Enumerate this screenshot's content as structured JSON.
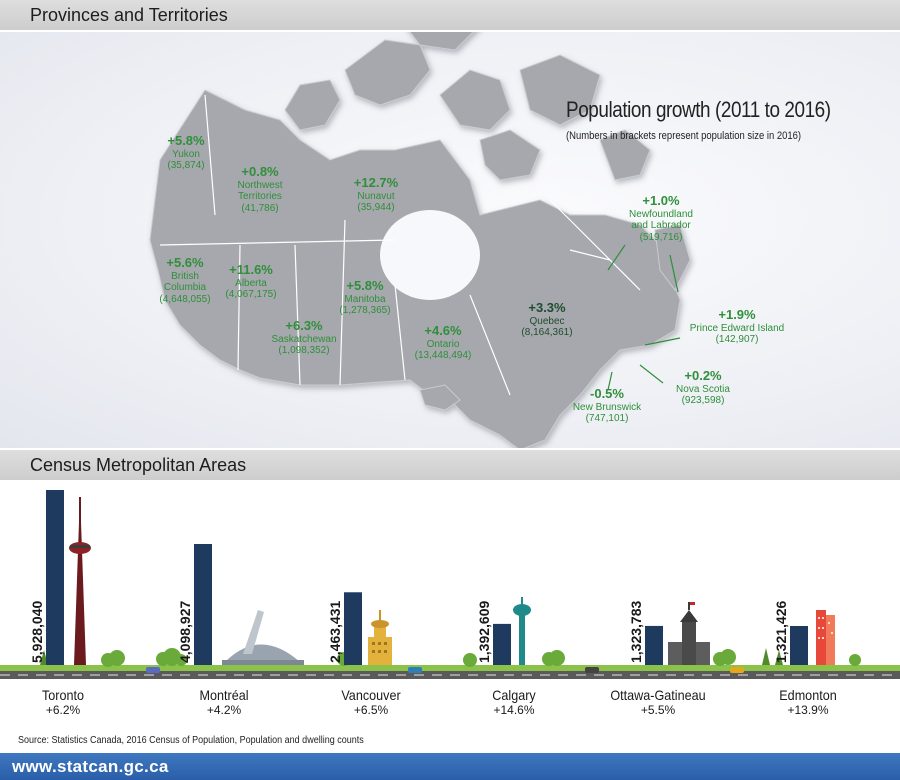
{
  "sections": {
    "provinces_title": "Provinces and Territories",
    "cma_title": "Census Metropolitan Areas"
  },
  "map": {
    "title": "Population growth (2011 to 2016)",
    "subtitle": "(Numbers in brackets represent population size in 2016)",
    "provinces": [
      {
        "growth": "+5.8%",
        "name": "Yukon",
        "population": "(35,874)"
      },
      {
        "growth": "+0.8%",
        "name": "Northwest\nTerritories",
        "population": "(41,786)"
      },
      {
        "growth": "+12.7%",
        "name": "Nunavut",
        "population": "(35,944)"
      },
      {
        "growth": "+1.0%",
        "name": "Newfoundland\nand Labrador",
        "population": "(519,716)"
      },
      {
        "growth": "+5.6%",
        "name": "British\nColumbia",
        "population": "(4,648,055)"
      },
      {
        "growth": "+11.6%",
        "name": "Alberta",
        "population": "(4,067,175)"
      },
      {
        "growth": "+5.8%",
        "name": "Manitoba",
        "population": "(1,278,365)"
      },
      {
        "growth": "+6.3%",
        "name": "Saskatchewan",
        "population": "(1,098,352)"
      },
      {
        "growth": "+4.6%",
        "name": "Ontario",
        "population": "(13,448,494)"
      },
      {
        "growth": "+3.3%",
        "name": "Quebec",
        "population": "(8,164,361)"
      },
      {
        "growth": "+1.9%",
        "name": "Prince Edward Island",
        "population": "(142,907)"
      },
      {
        "growth": "+0.2%",
        "name": "Nova Scotia",
        "population": "(923,598)"
      },
      {
        "growth": "-0.5%",
        "name": "New Brunswick",
        "population": "(747,101)"
      }
    ]
  },
  "colors": {
    "bar": "#1e3a5f",
    "growth_text": "#2f8f3a",
    "land": "#a6a8ad",
    "road": "#5a5a5a",
    "grass": "#8bc34a",
    "footer": "#2f66ad"
  },
  "chart_data": {
    "type": "bar",
    "categories": [
      "Toronto",
      "Montréal",
      "Vancouver",
      "Calgary",
      "Ottawa-Gatineau",
      "Edmonton"
    ],
    "values": [
      5928040,
      4098927,
      2463431,
      1392609,
      1323783,
      1321426
    ],
    "value_labels": [
      "5,928,040",
      "4,098,927",
      "2,463,431",
      "1,392,609",
      "1,323,783",
      "1,321,426"
    ],
    "growth": [
      "+6.2%",
      "+4.2%",
      "+6.5%",
      "+14.6%",
      "+5.5%",
      "+13.9%"
    ],
    "landmark_icons": [
      "cn-tower-icon",
      "olympic-stadium-icon",
      "harbour-centre-icon",
      "calgary-tower-icon",
      "parliament-icon",
      "edmonton-towers-icon"
    ],
    "title": "Census Metropolitan Areas",
    "grid": false
  },
  "source": "Source: Statistics Canada, 2016 Census of Population, Population and dwelling counts",
  "footer": {
    "url": "www.statcan.gc.ca"
  }
}
